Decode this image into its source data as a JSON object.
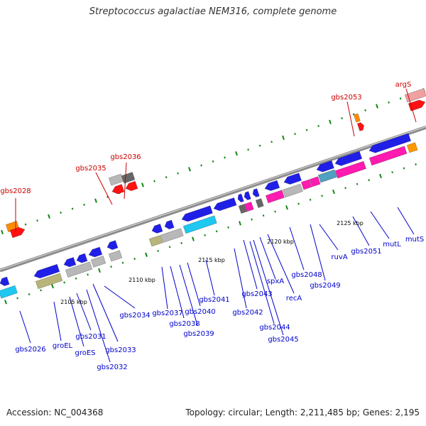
{
  "title": "Streptococcus agalactiae NEM316, complete genome",
  "footer": {
    "accession": "Accession: NC_004368",
    "summary": "Topology: circular; Length: 2,211,485 bp; Genes: 2,195"
  },
  "colors": {
    "backbone": "#8c8c8c",
    "gene_label_blue": "#0000cc",
    "gene_label_red": "#cc0000",
    "tick_green": "#118811"
  },
  "gene_labels_forward": [
    "gbs2028",
    "gbs2035",
    "gbs2036",
    "gbs2053",
    "argS"
  ],
  "gene_labels_reverse": [
    "gbs2026",
    "groEL",
    "groES",
    "gbs2031",
    "gbs2032",
    "gbs2033",
    "gbs2034",
    "gbs2037",
    "gbs2038",
    "gbs2039",
    "gbs2040",
    "gbs2041",
    "gbs2042",
    "gbs2043",
    "spxA",
    "gbs2044",
    "gbs2045",
    "recA",
    "gbs2048",
    "gbs2049",
    "ruvA",
    "gbs2051",
    "mutL",
    "mutS"
  ],
  "scale_labels": [
    "2105 kbp",
    "2110 kbp",
    "2115 kbp",
    "2120 kbp",
    "2125 kbp"
  ]
}
